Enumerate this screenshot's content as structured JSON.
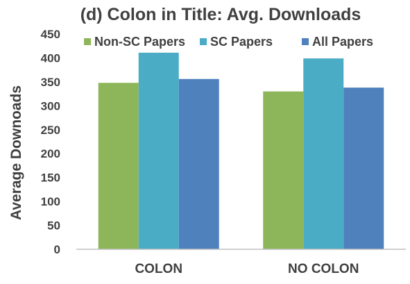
{
  "chart_data": {
    "type": "bar",
    "title": "(d) Colon in Title: Avg. Downloads",
    "xlabel": "",
    "ylabel": "Average Downoads",
    "categories": [
      "COLON",
      "NO COLON"
    ],
    "series": [
      {
        "name": "Non-SC Papers",
        "color": "#8db65a",
        "values": [
          348,
          330
        ]
      },
      {
        "name": "SC Papers",
        "color": "#4bacc6",
        "values": [
          411,
          399
        ]
      },
      {
        "name": "All Papers",
        "color": "#4f81bd",
        "values": [
          356,
          338
        ]
      }
    ],
    "ylim": [
      0,
      450
    ],
    "yticks": [
      "0",
      "50",
      "100",
      "150",
      "200",
      "250",
      "300",
      "350",
      "400",
      "450"
    ],
    "grid": false,
    "legend_position": "top"
  }
}
